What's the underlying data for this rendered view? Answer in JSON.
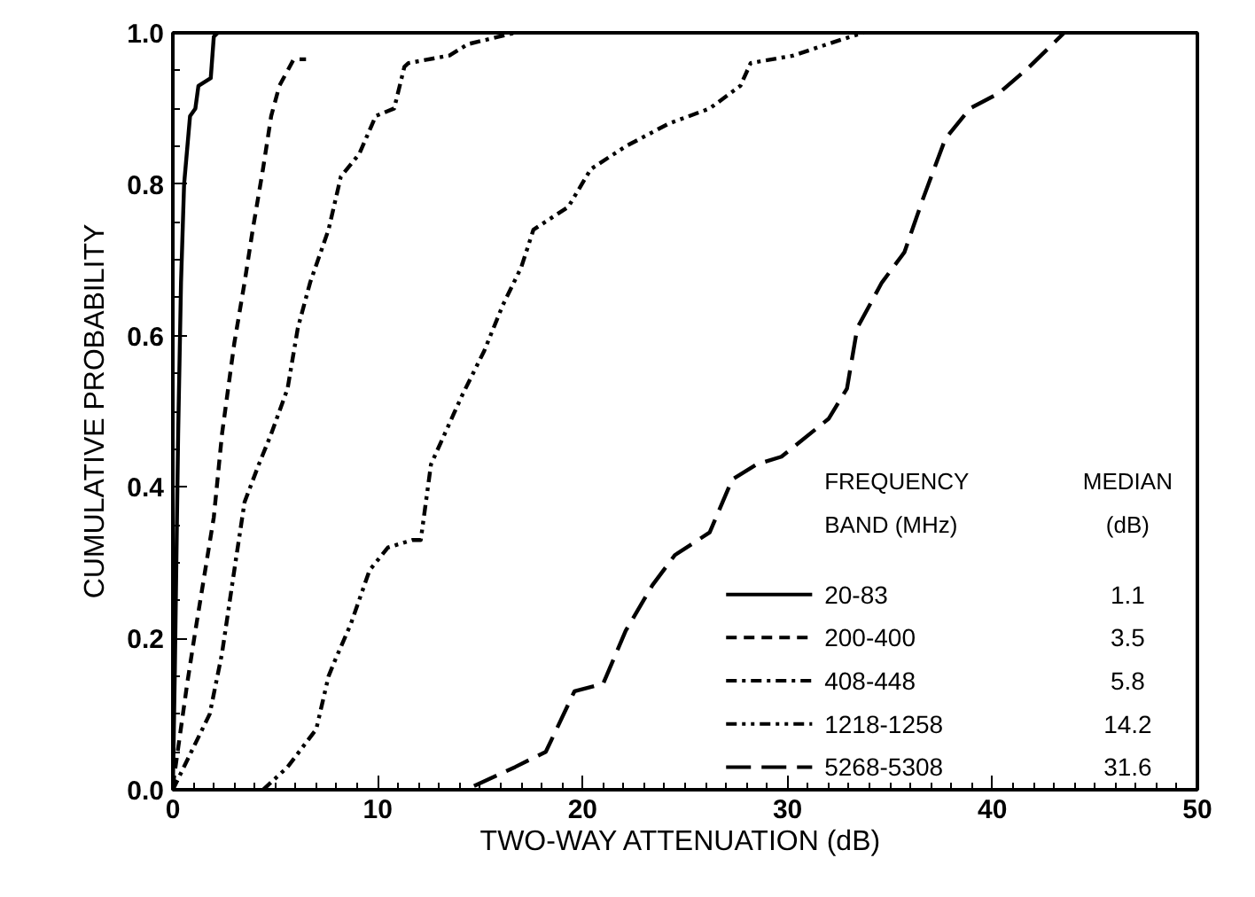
{
  "chart_data": {
    "type": "line",
    "xlabel": "TWO-WAY ATTENUATION  (dB)",
    "ylabel": "CUMULATIVE PROBABILITY",
    "legend_title": "FREQUENCY\nBAND (MHz)",
    "legend": "bottom right",
    "grid": false,
    "marker": "none",
    "annotations": [
      "MEDIAN\n(dB)",
      "1.1",
      "3.5",
      "5.8",
      "14.2",
      "31.6"
    ],
    "xlim": [
      0,
      50
    ],
    "xticks": [
      0,
      10,
      20,
      30,
      40,
      50
    ],
    "ylim": [
      0,
      1
    ],
    "yticks": [
      {
        "value": 0,
        "label": "0.0"
      },
      {
        "value": 0.2,
        "label": "0.2"
      },
      {
        "value": 0.4,
        "label": "0.4"
      },
      {
        "value": 0.6,
        "label": "0.6"
      },
      {
        "value": 0.8,
        "label": "0.8"
      },
      {
        "value": 1,
        "label": "1.0"
      }
    ],
    "series": [
      {
        "name": "20-83",
        "color": "#000000",
        "line_style": "solid",
        "x": [
          0,
          0.1,
          0.26,
          0.4,
          0.55,
          0.84,
          1.1,
          1.25,
          1.85,
          2.0,
          2.2
        ],
        "values": [
          0,
          0.16,
          0.47,
          0.67,
          0.8,
          0.89,
          0.9,
          0.93,
          0.94,
          0.995,
          1.0
        ]
      },
      {
        "name": "200-400",
        "color": "#000000",
        "line_style": "dashed",
        "x": [
          0,
          0.7,
          1.1,
          2.0,
          2.4,
          3.0,
          3.5,
          3.9,
          4.4,
          4.8,
          5.2,
          5.9,
          6.5
        ],
        "values": [
          0.005,
          0.14,
          0.21,
          0.36,
          0.47,
          0.59,
          0.67,
          0.74,
          0.82,
          0.89,
          0.93,
          0.965,
          0.965
        ]
      },
      {
        "name": "408-448",
        "color": "#000000",
        "line_style": "dashdot",
        "x": [
          0,
          0.9,
          1.8,
          2.4,
          3.0,
          3.5,
          4.2,
          4.8,
          5.6,
          6.1,
          6.7,
          7.6,
          8.2,
          9.1,
          9.9,
          10.8,
          11.3,
          11.5,
          13.5,
          14.4,
          16.7
        ],
        "values": [
          0,
          0.05,
          0.1,
          0.18,
          0.29,
          0.38,
          0.43,
          0.47,
          0.53,
          0.61,
          0.67,
          0.74,
          0.81,
          0.84,
          0.89,
          0.9,
          0.955,
          0.96,
          0.97,
          0.985,
          1.0
        ]
      },
      {
        "name": "1218-1258",
        "color": "#000000",
        "line_style": "dashdotdot",
        "x": [
          4.4,
          5.6,
          7.0,
          7.6,
          7.9,
          8.7,
          9.6,
          10.5,
          11.7,
          12.1,
          12.6,
          14.1,
          15.2,
          16.1,
          17.0,
          17.6,
          19.3,
          20.4,
          22.1,
          24.2,
          26.2,
          27.7,
          28.2,
          30.3,
          32.5,
          33.7
        ],
        "values": [
          0,
          0.03,
          0.08,
          0.15,
          0.17,
          0.22,
          0.29,
          0.32,
          0.33,
          0.33,
          0.43,
          0.52,
          0.58,
          0.64,
          0.69,
          0.74,
          0.77,
          0.82,
          0.85,
          0.88,
          0.9,
          0.93,
          0.96,
          0.97,
          0.99,
          1.0
        ]
      },
      {
        "name": "5268-5308",
        "color": "#000000",
        "line_style": "longdash",
        "x": [
          14.7,
          16.7,
          18.2,
          19.6,
          21.0,
          22.1,
          23.4,
          24.5,
          26.2,
          27.3,
          28.5,
          29.7,
          32.0,
          32.9,
          33.4,
          34.6,
          35.7,
          36.6,
          37.7,
          38.9,
          40.3,
          41.8,
          43.5
        ],
        "values": [
          0.005,
          0.03,
          0.05,
          0.13,
          0.14,
          0.21,
          0.27,
          0.31,
          0.34,
          0.41,
          0.43,
          0.44,
          0.49,
          0.53,
          0.61,
          0.67,
          0.71,
          0.78,
          0.86,
          0.9,
          0.92,
          0.955,
          1.0
        ]
      }
    ]
  }
}
